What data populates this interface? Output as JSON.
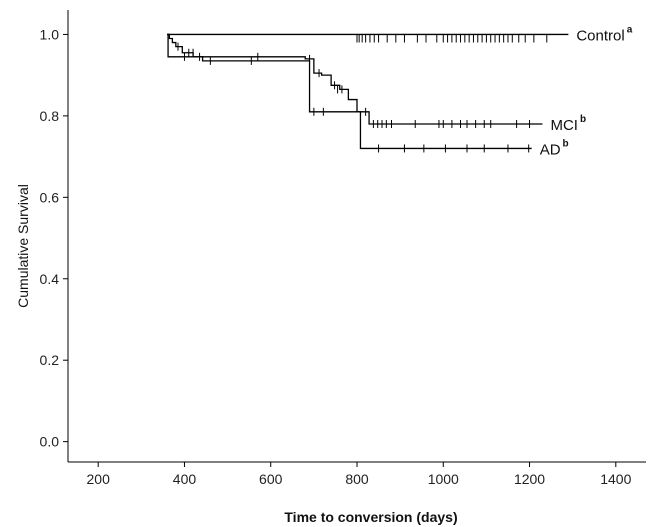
{
  "chart_data": {
    "type": "line",
    "title": "",
    "xlabel": "Time to conversion (days)",
    "ylabel": "Cumulative Survival",
    "xlim": [
      130,
      1470
    ],
    "ylim": [
      -0.05,
      1.06
    ],
    "xticks": [
      200,
      400,
      600,
      800,
      1000,
      1200,
      1400
    ],
    "yticks": [
      0.0,
      0.2,
      0.4,
      0.6,
      0.8,
      1.0
    ],
    "xtick_labels": [
      "200",
      "400",
      "600",
      "800",
      "1000",
      "1200",
      "1400"
    ],
    "ytick_labels": [
      "0.0",
      "0.2",
      "0.4",
      "0.6",
      "0.8",
      "1.0"
    ],
    "grid": false,
    "color": "#000000",
    "series": [
      {
        "name": "Control",
        "superscript": "a",
        "steps": [
          [
            360,
            1.0
          ],
          [
            1290,
            1.0
          ]
        ],
        "censored": [
          [
            800,
            0.99
          ],
          [
            805,
            0.99
          ],
          [
            812,
            0.99
          ],
          [
            820,
            0.99
          ],
          [
            830,
            0.99
          ],
          [
            840,
            0.99
          ],
          [
            850,
            0.99
          ],
          [
            870,
            0.99
          ],
          [
            890,
            0.99
          ],
          [
            910,
            0.99
          ],
          [
            940,
            0.99
          ],
          [
            960,
            0.99
          ],
          [
            985,
            0.99
          ],
          [
            1000,
            0.99
          ],
          [
            1010,
            0.99
          ],
          [
            1020,
            0.99
          ],
          [
            1030,
            0.99
          ],
          [
            1040,
            0.99
          ],
          [
            1050,
            0.99
          ],
          [
            1060,
            0.99
          ],
          [
            1070,
            0.99
          ],
          [
            1080,
            0.99
          ],
          [
            1090,
            0.99
          ],
          [
            1100,
            0.99
          ],
          [
            1110,
            0.99
          ],
          [
            1120,
            0.99
          ],
          [
            1130,
            0.99
          ],
          [
            1140,
            0.99
          ],
          [
            1150,
            0.99
          ],
          [
            1160,
            0.99
          ],
          [
            1175,
            0.99
          ],
          [
            1190,
            0.99
          ],
          [
            1210,
            0.99
          ],
          [
            1240,
            0.99
          ]
        ]
      },
      {
        "name": "MCI",
        "superscript": "b",
        "steps": [
          [
            360,
            1.0
          ],
          [
            365,
            0.99
          ],
          [
            372,
            0.98
          ],
          [
            380,
            0.97
          ],
          [
            395,
            0.955
          ],
          [
            420,
            0.945
          ],
          [
            560,
            0.945
          ],
          [
            680,
            0.94
          ],
          [
            700,
            0.905
          ],
          [
            718,
            0.9
          ],
          [
            740,
            0.875
          ],
          [
            760,
            0.865
          ],
          [
            780,
            0.84
          ],
          [
            800,
            0.81
          ],
          [
            828,
            0.78
          ],
          [
            1230,
            0.78
          ]
        ],
        "censored": [
          [
            385,
            0.97
          ],
          [
            410,
            0.955
          ],
          [
            420,
            0.955
          ],
          [
            435,
            0.945
          ],
          [
            570,
            0.945
          ],
          [
            690,
            0.94
          ],
          [
            712,
            0.905
          ],
          [
            748,
            0.875
          ],
          [
            755,
            0.865
          ],
          [
            765,
            0.865
          ],
          [
            820,
            0.81
          ],
          [
            838,
            0.78
          ],
          [
            848,
            0.78
          ],
          [
            858,
            0.78
          ],
          [
            868,
            0.78
          ],
          [
            880,
            0.78
          ],
          [
            935,
            0.78
          ],
          [
            990,
            0.78
          ],
          [
            1000,
            0.78
          ],
          [
            1020,
            0.78
          ],
          [
            1040,
            0.78
          ],
          [
            1055,
            0.78
          ],
          [
            1075,
            0.78
          ],
          [
            1095,
            0.78
          ],
          [
            1110,
            0.78
          ],
          [
            1170,
            0.78
          ],
          [
            1200,
            0.78
          ]
        ]
      },
      {
        "name": "AD",
        "superscript": "b",
        "steps": [
          [
            360,
            1.0
          ],
          [
            362,
            0.945
          ],
          [
            442,
            0.935
          ],
          [
            672,
            0.935
          ],
          [
            690,
            0.81
          ],
          [
            800,
            0.81
          ],
          [
            808,
            0.72
          ],
          [
            1205,
            0.72
          ]
        ],
        "censored": [
          [
            400,
            0.945
          ],
          [
            460,
            0.935
          ],
          [
            555,
            0.935
          ],
          [
            700,
            0.81
          ],
          [
            722,
            0.81
          ],
          [
            850,
            0.72
          ],
          [
            910,
            0.72
          ],
          [
            955,
            0.72
          ],
          [
            1005,
            0.72
          ],
          [
            1055,
            0.72
          ],
          [
            1095,
            0.72
          ],
          [
            1150,
            0.72
          ],
          [
            1198,
            0.72
          ]
        ]
      }
    ]
  }
}
